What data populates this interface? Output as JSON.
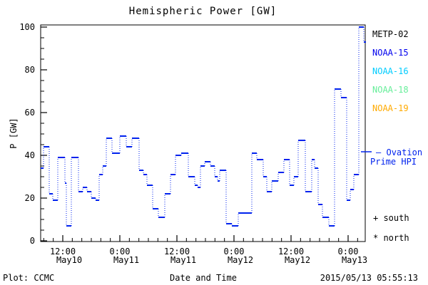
{
  "title": "Hemispheric Power [GW]",
  "legend": {
    "satellites": [
      {
        "label": "METP-02",
        "color": "#000000"
      },
      {
        "label": "NOAA-15",
        "color": "#0000ee"
      },
      {
        "label": "NOAA-16",
        "color": "#00ccff"
      },
      {
        "label": "NOAA-18",
        "color": "#66ee99"
      },
      {
        "label": "NOAA-19",
        "color": "#ffaa00"
      }
    ],
    "model": {
      "dash": "—",
      "line1": "Ovation",
      "line2": "Prime HPI",
      "color": "#0022ee"
    },
    "south_marker": "+ south",
    "north_marker": "* north"
  },
  "footer": {
    "credit": "Plot: CCMC",
    "xlabel": "Date and Time",
    "timestamp": "2015/05/13 05:55:13"
  },
  "chart_data": {
    "type": "line",
    "style": "steps-post, solid horizontal treads with dotted vertical risers",
    "title": "Hemispheric Power [GW]",
    "xlabel": "Date and Time",
    "ylabel": "P [GW]",
    "ylim": [
      0,
      100
    ],
    "yticks": [
      0,
      20,
      40,
      60,
      80,
      100
    ],
    "y_minor_step": 5,
    "grid": false,
    "legend_position": "right-outside",
    "x_unit": "hours since 2015-05-10 00:00",
    "xlim": [
      7.35,
      75.75
    ],
    "x_minor_step_hours": 2,
    "xticks": [
      {
        "t": 12,
        "time": "12:00",
        "date": "May10"
      },
      {
        "t": 24,
        "time": "0:00",
        "date": "May11"
      },
      {
        "t": 36,
        "time": "12:00",
        "date": "May11"
      },
      {
        "t": 48,
        "time": "0:00",
        "date": "May12"
      },
      {
        "t": 60,
        "time": "12:00",
        "date": "May12"
      },
      {
        "t": 72,
        "time": "0:00",
        "date": "May13"
      }
    ],
    "series": [
      {
        "name": "Ovation Prime HPI",
        "color": "#0022ee",
        "steps": [
          [
            7.35,
            34
          ],
          [
            7.95,
            44
          ],
          [
            9.15,
            22
          ],
          [
            9.9,
            19
          ],
          [
            10.95,
            39
          ],
          [
            12.45,
            27
          ],
          [
            12.75,
            7
          ],
          [
            13.8,
            39
          ],
          [
            15.3,
            23
          ],
          [
            16.2,
            25
          ],
          [
            17.1,
            23
          ],
          [
            18.0,
            20
          ],
          [
            18.9,
            19
          ],
          [
            19.65,
            31
          ],
          [
            20.4,
            35
          ],
          [
            21.15,
            48
          ],
          [
            22.35,
            41
          ],
          [
            24.0,
            49
          ],
          [
            25.35,
            44
          ],
          [
            26.55,
            48
          ],
          [
            28.05,
            33
          ],
          [
            28.95,
            31
          ],
          [
            29.7,
            26
          ],
          [
            30.9,
            15
          ],
          [
            32.1,
            11
          ],
          [
            33.45,
            22
          ],
          [
            34.65,
            31
          ],
          [
            35.7,
            40
          ],
          [
            36.9,
            41
          ],
          [
            38.4,
            30
          ],
          [
            39.75,
            26
          ],
          [
            40.35,
            25
          ],
          [
            40.95,
            35
          ],
          [
            41.85,
            37
          ],
          [
            43.05,
            35
          ],
          [
            43.95,
            30
          ],
          [
            44.55,
            28
          ],
          [
            45.0,
            33
          ],
          [
            46.35,
            8
          ],
          [
            47.55,
            7
          ],
          [
            48.9,
            13
          ],
          [
            50.4,
            13
          ],
          [
            51.75,
            41
          ],
          [
            52.8,
            38
          ],
          [
            54.15,
            30
          ],
          [
            54.9,
            23
          ],
          [
            55.95,
            28
          ],
          [
            57.3,
            32
          ],
          [
            58.5,
            38
          ],
          [
            59.7,
            26
          ],
          [
            60.6,
            30
          ],
          [
            61.5,
            47
          ],
          [
            63.0,
            23
          ],
          [
            64.35,
            38
          ],
          [
            64.95,
            34
          ],
          [
            65.7,
            17
          ],
          [
            66.6,
            11
          ],
          [
            67.95,
            7
          ],
          [
            69.15,
            71
          ],
          [
            70.5,
            67
          ],
          [
            71.7,
            19
          ],
          [
            72.45,
            24
          ],
          [
            73.2,
            31
          ],
          [
            74.25,
            100
          ],
          [
            75.3,
            93
          ]
        ]
      }
    ]
  }
}
